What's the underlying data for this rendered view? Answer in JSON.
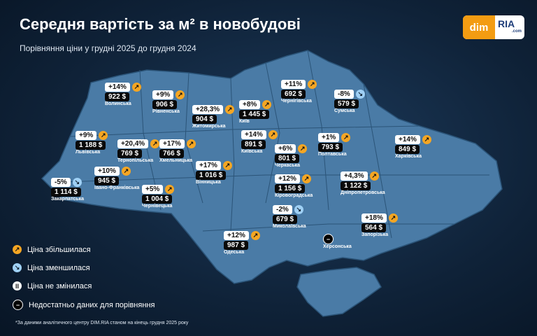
{
  "header": {
    "title": "Середня вартість за м² в новобудові",
    "subtitle": "Порівняння ціни у грудні 2025 до грудня 2024"
  },
  "logo": {
    "left": "dim",
    "right": "RIA",
    "domain": ".com"
  },
  "regions": [
    {
      "name": "Волинська",
      "change": "+14%",
      "price": "922 $",
      "trend": "up"
    },
    {
      "name": "Рівненська",
      "change": "+9%",
      "price": "906 $",
      "trend": "up"
    },
    {
      "name": "Житомирська",
      "change": "+28,3%",
      "price": "904 $",
      "trend": "up"
    },
    {
      "name": "Київ",
      "change": "+8%",
      "price": "1 445 $",
      "trend": "up"
    },
    {
      "name": "Чернігівська",
      "change": "+11%",
      "price": "692 $",
      "trend": "up"
    },
    {
      "name": "Сумська",
      "change": "-8%",
      "price": "579 $",
      "trend": "down"
    },
    {
      "name": "Львівська",
      "change": "+9%",
      "price": "1 188 $",
      "trend": "up"
    },
    {
      "name": "Тернопільська",
      "change": "+20,4%",
      "price": "769 $",
      "trend": "up"
    },
    {
      "name": "Хмельницька",
      "change": "+17%",
      "price": "766 $",
      "trend": "up"
    },
    {
      "name": "Київська",
      "change": "+14%",
      "price": "891 $",
      "trend": "up"
    },
    {
      "name": "Полтавська",
      "change": "+1%",
      "price": "793 $",
      "trend": "up"
    },
    {
      "name": "Харківська",
      "change": "+14%",
      "price": "849 $",
      "trend": "up"
    },
    {
      "name": "Черкаська",
      "change": "+6%",
      "price": "801 $",
      "trend": "up"
    },
    {
      "name": "Вінницька",
      "change": "+17%",
      "price": "1 016 $",
      "trend": "up"
    },
    {
      "name": "Закарпатська",
      "change": "-5%",
      "price": "1 114 $",
      "trend": "down"
    },
    {
      "name": "Івано-Франківська",
      "change": "+10%",
      "price": "945 $",
      "trend": "up"
    },
    {
      "name": "Чернівецька",
      "change": "+5%",
      "price": "1 004 $",
      "trend": "up"
    },
    {
      "name": "Кіровоградська",
      "change": "+12%",
      "price": "1 156 $",
      "trend": "up"
    },
    {
      "name": "Дніпропетровська",
      "change": "+4,3%",
      "price": "1 122 $",
      "trend": "up"
    },
    {
      "name": "Миколаївська",
      "change": "-2%",
      "price": "679 $",
      "trend": "down"
    },
    {
      "name": "Запорізька",
      "change": "+18%",
      "price": "564 $",
      "trend": "up"
    },
    {
      "name": "Одеська",
      "change": "+12%",
      "price": "987 $",
      "trend": "up"
    },
    {
      "name": "Херсонська",
      "trend": "none"
    }
  ],
  "legend": [
    {
      "label": "Ціна збільшилася",
      "trend": "up"
    },
    {
      "label": "Ціна зменшилася",
      "trend": "down"
    },
    {
      "label": "Ціна не змінилася",
      "trend": "same"
    },
    {
      "label": "Недостатньо даних для порівняння",
      "trend": "none"
    }
  ],
  "footnote": "*За даними аналітичного центру DIM.RIA станом на кінець грудня 2025 року"
}
